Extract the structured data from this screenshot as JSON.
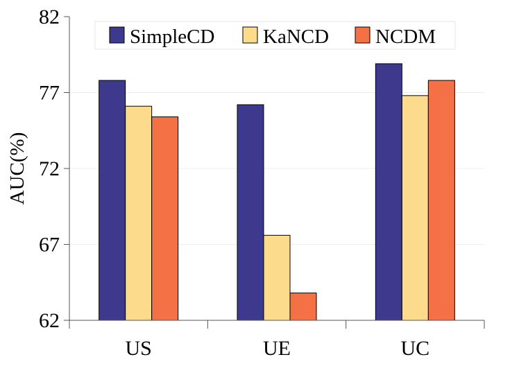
{
  "chart_data": {
    "type": "bar",
    "title": "",
    "xlabel": "",
    "ylabel": "AUC(%)",
    "categories": [
      "US",
      "UE",
      "UC"
    ],
    "ylim": [
      62,
      82
    ],
    "yticks": [
      62,
      67,
      72,
      77,
      82
    ],
    "grid": true,
    "legend_position": "top",
    "series": [
      {
        "name": "SimpleCD",
        "color": "#3d3a8d",
        "values": [
          77.8,
          76.2,
          78.9
        ]
      },
      {
        "name": "KaNCD",
        "color": "#fcdc8c",
        "values": [
          76.1,
          67.6,
          76.8
        ]
      },
      {
        "name": "NCDM",
        "color": "#f47145",
        "values": [
          75.4,
          63.8,
          77.8
        ]
      }
    ]
  }
}
